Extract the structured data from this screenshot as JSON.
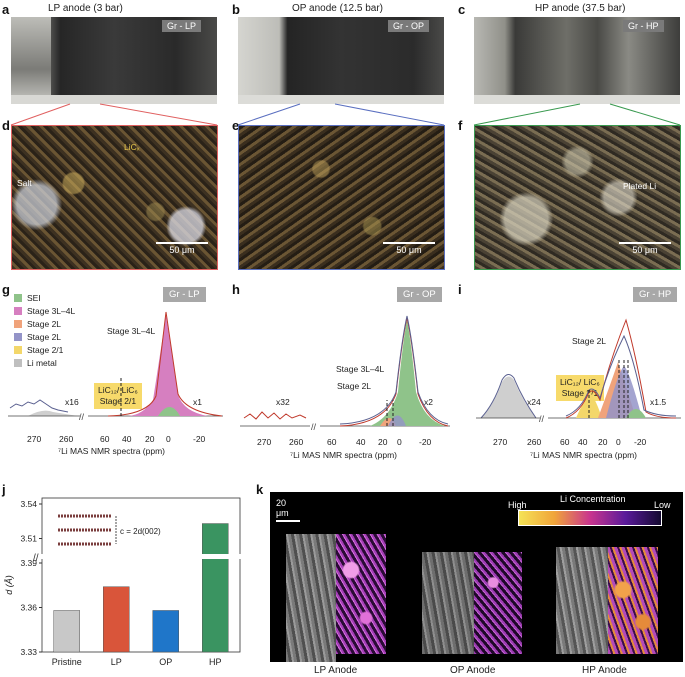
{
  "panels": {
    "a": {
      "letter": "a",
      "title": "LP anode (3 bar)",
      "tag": "Gr - LP"
    },
    "b": {
      "letter": "b",
      "title": "OP anode (12.5 bar)",
      "tag": "Gr - OP"
    },
    "c": {
      "letter": "c",
      "title": "HP anode (37.5 bar)",
      "tag": "Gr - HP"
    },
    "d": {
      "letter": "d",
      "label_licx": "LiCₓ",
      "label_salt": "Salt",
      "scale": "50 μm"
    },
    "e": {
      "letter": "e",
      "scale": "50 μm"
    },
    "f": {
      "letter": "f",
      "label_plated": "Plated Li",
      "scale": "50 μm"
    }
  },
  "nmr": {
    "g": {
      "letter": "g",
      "tag": "Gr - LP",
      "stage_label": "Stage 3L–4L",
      "box_line1": "LiC₁₂/ LiC₆",
      "box_line2": "Stage 2/1",
      "mult_left": "x16",
      "mult_right": "x1",
      "ticks": [
        "270",
        "260",
        "60",
        "40",
        "20",
        "0",
        "-20"
      ],
      "xlabel": "⁷Li MAS NMR spectra (ppm)"
    },
    "h": {
      "letter": "h",
      "tag": "Gr - OP",
      "stage_label": "Stage 3L–4L",
      "stage2_label": "Stage 2L",
      "mult_left": "x32",
      "mult_right": "x2",
      "ticks": [
        "270",
        "260",
        "60",
        "40",
        "20",
        "0",
        "-20"
      ],
      "xlabel": "⁷Li MAS NMR spectra (ppm)"
    },
    "i": {
      "letter": "i",
      "tag": "Gr - HP",
      "stage_label": "Stage 2L",
      "box_line1": "LiC₁₂/ LiC₆",
      "box_line2": "Stage 2/1",
      "mult_left": "x24",
      "mult_right": "x1.5",
      "ticks": [
        "270",
        "260",
        "60",
        "40",
        "20",
        "0",
        "-20"
      ],
      "xlabel": "⁷Li MAS NMR spectra (ppm)"
    },
    "legend": [
      {
        "name": "SEI",
        "color": "#8fc38a"
      },
      {
        "name": "Stage 3L–4L",
        "color": "#d67fc0"
      },
      {
        "name": "Stage 2L",
        "color": "#f0a37b"
      },
      {
        "name": "Stage 2L",
        "color": "#9494c8"
      },
      {
        "name": "Stage 2/1",
        "color": "#f3d76a"
      },
      {
        "name": "Li metal",
        "color": "#bfbfbf"
      }
    ]
  },
  "chart_data": {
    "type": "bar",
    "title": "",
    "ylabel": "d (Å)",
    "xlabel": "",
    "categories": [
      "Pristine",
      "LP",
      "OP",
      "HP"
    ],
    "values": [
      3.358,
      3.374,
      3.358,
      3.523
    ],
    "colors": [
      "#c8c8c8",
      "#d9553a",
      "#1f76c9",
      "#3a9461"
    ],
    "yticks_lower": [
      "3.33",
      "3.36",
      "3.39"
    ],
    "yticks_upper": [
      "3.51",
      "3.54"
    ],
    "axis_break": "//",
    "inset_label": "c = 2d(002)"
  },
  "panel_j": {
    "letter": "j"
  },
  "panel_k": {
    "letter": "k",
    "scale": "20 μm",
    "colorbar_title": "Li Concentration",
    "colorbar_high": "High",
    "colorbar_low": "Low",
    "labels": [
      "LP Anode",
      "OP Anode",
      "HP Anode"
    ]
  }
}
